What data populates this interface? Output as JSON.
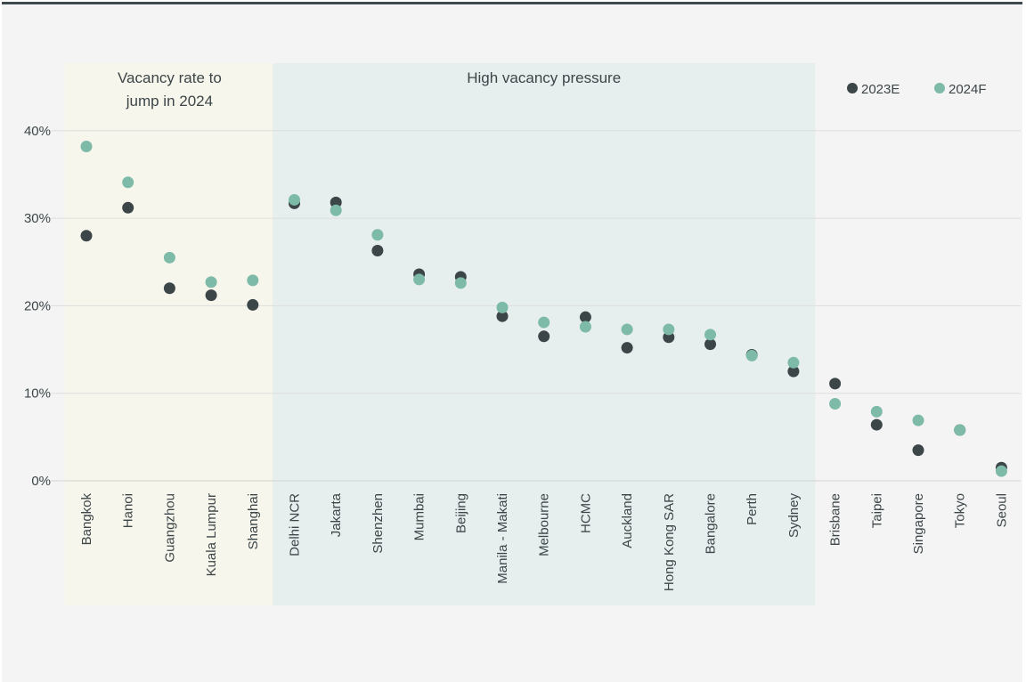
{
  "chart_data": {
    "type": "scatter",
    "title": "",
    "xlabel": "",
    "ylabel": "",
    "ylim": [
      0,
      40
    ],
    "y_ticks": [
      "0%",
      "10%",
      "20%",
      "30%",
      "40%"
    ],
    "categories": [
      "Bangkok",
      "Hanoi",
      "Guangzhou",
      "Kuala Lumpur",
      "Shanghai",
      "Delhi NCR",
      "Jakarta",
      "Shenzhen",
      "Mumbai",
      "Beijing",
      "Manila - Makati",
      "Melbourne",
      "HCMC",
      "Auckland",
      "Hong Kong SAR",
      "Bangalore",
      "Perth",
      "Sydney",
      "Brisbane",
      "Taipei",
      "Singapore",
      "Tokyo",
      "Seoul"
    ],
    "series": [
      {
        "name": "2023E",
        "color": "#3c4548",
        "values": [
          28,
          31.2,
          22,
          21.2,
          20.1,
          31.7,
          31.8,
          26.3,
          23.6,
          23.3,
          18.8,
          16.5,
          18.7,
          15.2,
          16.4,
          15.6,
          14.4,
          12.5,
          11.1,
          6.4,
          3.5,
          5.8,
          1.5
        ]
      },
      {
        "name": "2024F",
        "color": "#7dbaa8",
        "values": [
          38.2,
          34.1,
          25.5,
          22.7,
          22.9,
          32.1,
          30.9,
          28.1,
          23.0,
          22.6,
          19.8,
          18.1,
          17.6,
          17.3,
          17.3,
          16.7,
          14.3,
          13.5,
          8.8,
          7.9,
          6.9,
          5.8,
          1.1
        ]
      }
    ],
    "bands": [
      {
        "label_lines": [
          "Vacancy rate to",
          "jump in 2024"
        ],
        "from": 0,
        "to": 4,
        "color": "#f7f6ec"
      },
      {
        "label_lines": [
          "High vacancy pressure"
        ],
        "from": 5,
        "to": 17,
        "color": "#e6efed"
      }
    ],
    "legend": [
      {
        "label": "2023E",
        "color": "#3c4548"
      },
      {
        "label": "2024F",
        "color": "#7dbaa8"
      }
    ],
    "legend_position": "top-right",
    "grid": true
  }
}
